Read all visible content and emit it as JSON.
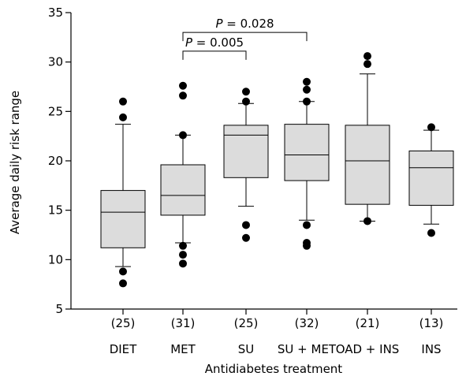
{
  "chart_data": {
    "type": "box",
    "xlabel": "Antidiabetes treatment",
    "ylabel": "Average daily risk range",
    "ylim": [
      5,
      35
    ],
    "yticks": [
      "5",
      "10",
      "15",
      "20",
      "25",
      "30",
      "35"
    ],
    "grid": false,
    "categories": [
      "DIET",
      "MET",
      "SU",
      "SU + MET",
      "OAD + INS",
      "INS"
    ],
    "counts": [
      "(25)",
      "(31)",
      "(25)",
      "(32)",
      "(21)",
      "(13)"
    ],
    "boxes": [
      {
        "whisker_low": 9.3,
        "q1": 11.2,
        "median": 14.8,
        "q3": 17.0,
        "whisker_high": 23.7,
        "outliers": [
          7.6,
          8.8,
          24.4,
          26.0
        ]
      },
      {
        "whisker_low": 11.7,
        "q1": 14.5,
        "median": 16.5,
        "q3": 19.6,
        "whisker_high": 22.6,
        "outliers": [
          9.6,
          10.5,
          11.4,
          22.6,
          26.6,
          27.6
        ]
      },
      {
        "whisker_low": 15.4,
        "q1": 18.3,
        "median": 22.6,
        "q3": 23.6,
        "whisker_high": 25.8,
        "outliers": [
          12.2,
          13.5,
          26.0,
          27.0
        ]
      },
      {
        "whisker_low": 14.0,
        "q1": 18.0,
        "median": 20.6,
        "q3": 23.7,
        "whisker_high": 26.0,
        "outliers": [
          11.4,
          11.7,
          13.5,
          26.0,
          27.2,
          28.0
        ]
      },
      {
        "whisker_low": 13.9,
        "q1": 15.6,
        "median": 20.0,
        "q3": 23.6,
        "whisker_high": 28.8,
        "outliers": [
          13.9,
          29.8,
          30.6
        ]
      },
      {
        "whisker_low": 13.6,
        "q1": 15.5,
        "median": 19.3,
        "q3": 21.0,
        "whisker_high": 23.1,
        "outliers": [
          12.7,
          23.4
        ]
      }
    ],
    "annotations": [
      {
        "from": "MET",
        "to": "SU",
        "p_symbol": "P",
        "p_text": " = 0.005"
      },
      {
        "from": "MET",
        "to": "SU + MET",
        "p_symbol": "P",
        "p_text": " = 0.028"
      }
    ]
  }
}
